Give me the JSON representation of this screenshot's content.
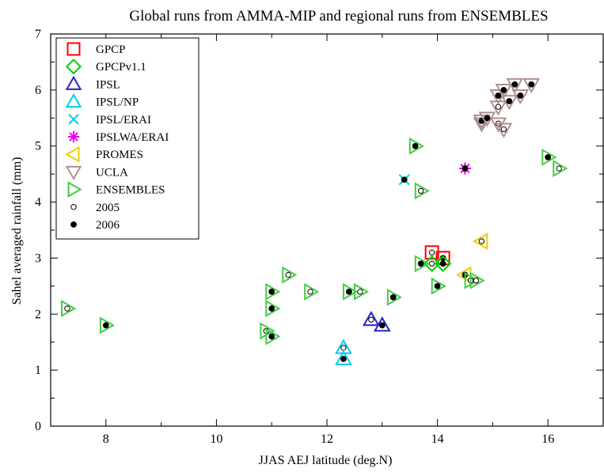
{
  "chart_data": {
    "type": "scatter",
    "title": "Global runs from AMMA-MIP and regional runs from ENSEMBLES",
    "xlabel": "JJAS AEJ latitude (deg.N)",
    "ylabel": "Sahel averaged rainfall (mm)",
    "xlim": [
      7,
      17
    ],
    "ylim": [
      0,
      7
    ],
    "xticks": [
      8,
      10,
      12,
      14,
      16
    ],
    "yticks": [
      0,
      1,
      2,
      3,
      4,
      5,
      6,
      7
    ],
    "grid": false,
    "legend_position": "top-left",
    "series": [
      {
        "name": "GPCP",
        "marker": "square",
        "color": "#ff0000",
        "points": [
          {
            "x": 13.9,
            "y": 3.1,
            "year": "2005"
          },
          {
            "x": 14.1,
            "y": 3.0,
            "year": "2006"
          }
        ]
      },
      {
        "name": "GPCPv1.1",
        "marker": "diamond",
        "color": "#00cc00",
        "points": [
          {
            "x": 13.9,
            "y": 2.9,
            "year": "2005"
          },
          {
            "x": 14.1,
            "y": 2.9,
            "year": "2006"
          }
        ]
      },
      {
        "name": "IPSL",
        "marker": "triangle-up",
        "color": "#2222cc",
        "points": [
          {
            "x": 12.8,
            "y": 1.9,
            "year": "2005"
          },
          {
            "x": 13.0,
            "y": 1.8,
            "year": "2006"
          }
        ]
      },
      {
        "name": "IPSL/NP",
        "marker": "triangle-up",
        "color": "#00ccee",
        "points": [
          {
            "x": 12.3,
            "y": 1.4,
            "year": "2005"
          },
          {
            "x": 12.3,
            "y": 1.2,
            "year": "2006"
          }
        ]
      },
      {
        "name": "IPSL/ERAI",
        "marker": "x",
        "color": "#00ccee",
        "points": [
          {
            "x": 13.4,
            "y": 4.4,
            "year": "2006"
          }
        ]
      },
      {
        "name": "IPSLWA/ERAI",
        "marker": "asterisk",
        "color": "#ee00ee",
        "points": [
          {
            "x": 14.5,
            "y": 4.6,
            "year": "2006"
          }
        ]
      },
      {
        "name": "PROMES",
        "marker": "triangle-left",
        "color": "#eecc00",
        "points": [
          {
            "x": 14.8,
            "y": 3.3,
            "year": "2005"
          },
          {
            "x": 14.5,
            "y": 2.7,
            "year": "2006"
          }
        ]
      },
      {
        "name": "UCLA",
        "marker": "triangle-down",
        "color": "#b09090",
        "points": [
          {
            "x": 14.8,
            "y": 5.4,
            "year": "2005"
          },
          {
            "x": 15.1,
            "y": 5.7,
            "year": "2005"
          },
          {
            "x": 15.1,
            "y": 5.4,
            "year": "2005"
          },
          {
            "x": 15.2,
            "y": 5.3,
            "year": "2005"
          },
          {
            "x": 14.8,
            "y": 5.45,
            "year": "2006"
          },
          {
            "x": 14.9,
            "y": 5.5,
            "year": "2006"
          },
          {
            "x": 15.1,
            "y": 5.9,
            "year": "2006"
          },
          {
            "x": 15.2,
            "y": 6.0,
            "year": "2006"
          },
          {
            "x": 15.3,
            "y": 5.8,
            "year": "2006"
          },
          {
            "x": 15.4,
            "y": 6.1,
            "year": "2006"
          },
          {
            "x": 15.5,
            "y": 5.9,
            "year": "2006"
          },
          {
            "x": 15.7,
            "y": 6.1,
            "year": "2006"
          }
        ]
      },
      {
        "name": "ENSEMBLES",
        "marker": "triangle-right",
        "color": "#44cc44",
        "points": [
          {
            "x": 7.3,
            "y": 2.1,
            "year": "2005"
          },
          {
            "x": 8.0,
            "y": 1.8,
            "year": "2006"
          },
          {
            "x": 10.9,
            "y": 1.7,
            "year": "2005"
          },
          {
            "x": 11.0,
            "y": 1.6,
            "year": "2006"
          },
          {
            "x": 11.0,
            "y": 2.1,
            "year": "2006"
          },
          {
            "x": 11.0,
            "y": 2.4,
            "year": "2006"
          },
          {
            "x": 11.3,
            "y": 2.7,
            "year": "2005"
          },
          {
            "x": 11.7,
            "y": 2.4,
            "year": "2005"
          },
          {
            "x": 12.4,
            "y": 2.4,
            "year": "2006"
          },
          {
            "x": 12.6,
            "y": 2.4,
            "year": "2005"
          },
          {
            "x": 13.2,
            "y": 2.3,
            "year": "2006"
          },
          {
            "x": 13.7,
            "y": 2.9,
            "year": "2006"
          },
          {
            "x": 14.0,
            "y": 2.5,
            "year": "2006"
          },
          {
            "x": 14.6,
            "y": 2.6,
            "year": "2005"
          },
          {
            "x": 14.7,
            "y": 2.6,
            "year": "2005"
          },
          {
            "x": 13.6,
            "y": 5.0,
            "year": "2006"
          },
          {
            "x": 13.7,
            "y": 4.2,
            "year": "2005"
          },
          {
            "x": 16.0,
            "y": 4.8,
            "year": "2006"
          },
          {
            "x": 16.2,
            "y": 4.6,
            "year": "2005"
          }
        ]
      }
    ],
    "year_markers": [
      {
        "name": "2005",
        "marker": "open-circle"
      },
      {
        "name": "2006",
        "marker": "filled-circle"
      }
    ]
  }
}
